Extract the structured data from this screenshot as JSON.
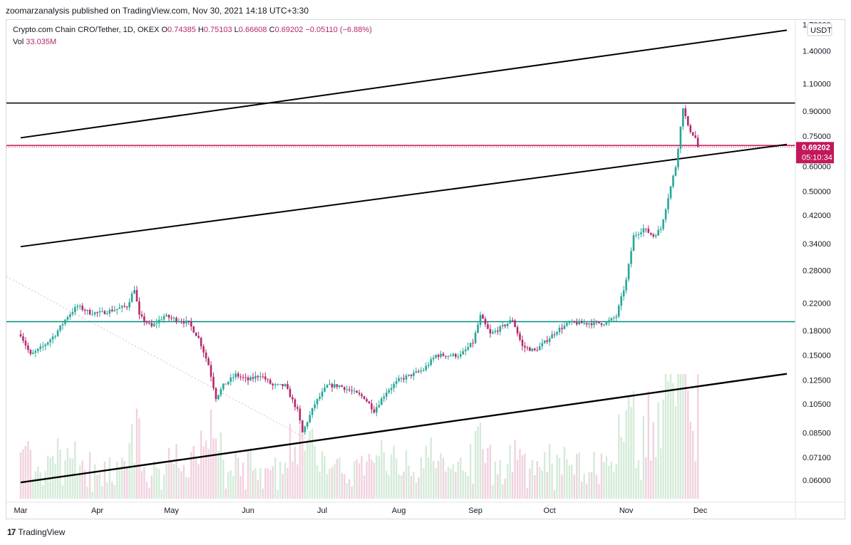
{
  "header": {
    "published_line": "zoomarzanalysis published on TradingView.com, Nov 30, 2021 14:18 UTC+3:30"
  },
  "legend": {
    "symbol": "Crypto.com Chain CRO/Tether, 1D, OKEX",
    "open_label": "O",
    "open": "0.74385",
    "high_label": "H",
    "high": "0.75103",
    "low_label": "L",
    "low": "0.66608",
    "close_label": "C",
    "close": "0.69202",
    "change": "−0.05110 (−6.88%)",
    "vol_label": "Vol",
    "vol": "33.035M"
  },
  "footer": {
    "brand": "TradingView"
  },
  "colors": {
    "up": "#26a69a",
    "down": "#b5276d",
    "volume_up": "#d4ebd8",
    "volume_down": "#f1d2df",
    "price_line": "#c2185b",
    "horizontal_level": "#00897b",
    "trendline": "#000000"
  },
  "chart_data": {
    "type": "candlestick",
    "symbol": "CRO/USDT",
    "timeframe": "1D",
    "scale": "log",
    "currency_label": "USDT",
    "y_ticks": [
      "0.06000",
      "0.07100",
      "0.08500",
      "0.10500",
      "0.12500",
      "0.15000",
      "0.18000",
      "0.22000",
      "0.28000",
      "0.34000",
      "0.42000",
      "0.50000",
      "0.60000",
      "0.75000",
      "0.90000",
      "1.10000",
      "1.40000",
      "1.70000"
    ],
    "x_ticks": [
      "Mar",
      "Apr",
      "May",
      "Jun",
      "Jul",
      "Aug",
      "Sep",
      "Oct",
      "Nov",
      "Dec"
    ],
    "last_price": "0.69202",
    "countdown": "05:10:34",
    "close_path": [
      [
        "2021-03-01",
        0.175
      ],
      [
        "2021-03-05",
        0.15
      ],
      [
        "2021-03-10",
        0.16
      ],
      [
        "2021-03-15",
        0.175
      ],
      [
        "2021-03-20",
        0.2
      ],
      [
        "2021-03-24",
        0.215
      ],
      [
        "2021-03-29",
        0.205
      ],
      [
        "2021-04-03",
        0.205
      ],
      [
        "2021-04-08",
        0.21
      ],
      [
        "2021-04-13",
        0.215
      ],
      [
        "2021-04-16",
        0.245
      ],
      [
        "2021-04-18",
        0.2
      ],
      [
        "2021-04-23",
        0.185
      ],
      [
        "2021-04-28",
        0.2
      ],
      [
        "2021-05-03",
        0.195
      ],
      [
        "2021-05-08",
        0.19
      ],
      [
        "2021-05-12",
        0.17
      ],
      [
        "2021-05-16",
        0.14
      ],
      [
        "2021-05-19",
        0.11
      ],
      [
        "2021-05-22",
        0.12
      ],
      [
        "2021-05-27",
        0.13
      ],
      [
        "2021-06-01",
        0.125
      ],
      [
        "2021-06-06",
        0.13
      ],
      [
        "2021-06-11",
        0.12
      ],
      [
        "2021-06-16",
        0.12
      ],
      [
        "2021-06-21",
        0.1
      ],
      [
        "2021-06-23",
        0.085
      ],
      [
        "2021-06-28",
        0.105
      ],
      [
        "2021-07-03",
        0.12
      ],
      [
        "2021-07-08",
        0.12
      ],
      [
        "2021-07-13",
        0.115
      ],
      [
        "2021-07-18",
        0.11
      ],
      [
        "2021-07-22",
        0.1
      ],
      [
        "2021-07-27",
        0.115
      ],
      [
        "2021-08-01",
        0.125
      ],
      [
        "2021-08-06",
        0.13
      ],
      [
        "2021-08-11",
        0.135
      ],
      [
        "2021-08-16",
        0.15
      ],
      [
        "2021-08-21",
        0.15
      ],
      [
        "2021-08-26",
        0.15
      ],
      [
        "2021-08-31",
        0.165
      ],
      [
        "2021-09-03",
        0.2
      ],
      [
        "2021-09-07",
        0.175
      ],
      [
        "2021-09-12",
        0.185
      ],
      [
        "2021-09-16",
        0.195
      ],
      [
        "2021-09-20",
        0.16
      ],
      [
        "2021-09-25",
        0.155
      ],
      [
        "2021-09-29",
        0.165
      ],
      [
        "2021-10-04",
        0.18
      ],
      [
        "2021-10-09",
        0.19
      ],
      [
        "2021-10-14",
        0.19
      ],
      [
        "2021-10-19",
        0.19
      ],
      [
        "2021-10-24",
        0.19
      ],
      [
        "2021-10-28",
        0.2
      ],
      [
        "2021-11-01",
        0.26
      ],
      [
        "2021-11-04",
        0.36
      ],
      [
        "2021-11-08",
        0.38
      ],
      [
        "2021-11-12",
        0.36
      ],
      [
        "2021-11-15",
        0.38
      ],
      [
        "2021-11-18",
        0.48
      ],
      [
        "2021-11-21",
        0.6
      ],
      [
        "2021-11-23",
        0.8
      ],
      [
        "2021-11-24",
        0.93
      ],
      [
        "2021-11-26",
        0.8
      ],
      [
        "2021-11-29",
        0.74
      ],
      [
        "2021-11-30",
        0.692
      ]
    ],
    "horizontal_levels": [
      0.955,
      0.7,
      0.192
    ],
    "trend_channel": {
      "upper": [
        [
          "2021-03-01",
          0.74
        ],
        [
          "2022-01-05",
          1.63
        ]
      ],
      "middle": [
        [
          "2021-03-01",
          0.333
        ],
        [
          "2022-01-05",
          0.705
        ]
      ],
      "lower": [
        [
          "2021-03-01",
          0.059
        ],
        [
          "2022-01-05",
          0.131
        ]
      ]
    }
  }
}
